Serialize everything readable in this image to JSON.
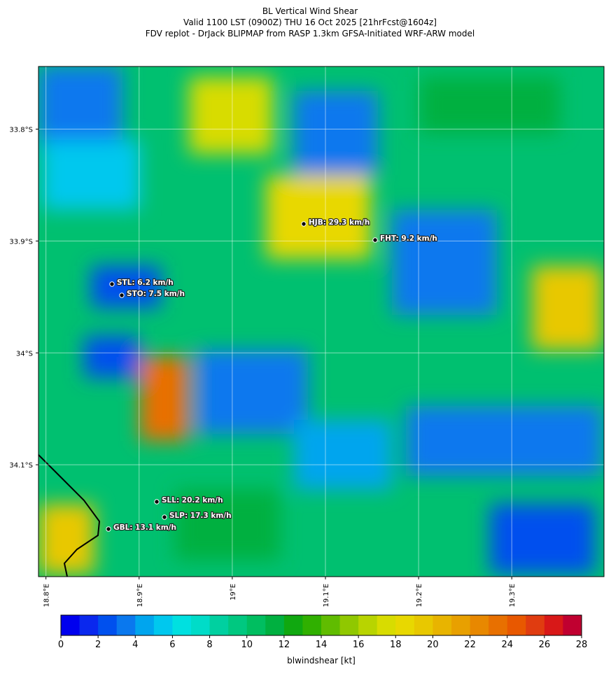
{
  "title": [
    "BL Vertical Wind Shear",
    "Valid 1100 LST (0900Z) THU 16 Oct 2025 [21hrFcst@1604z]",
    "FDV replot - DrJack BLIPMAP from RASP 1.3km GFSA-Initiated WRF-ARW model"
  ],
  "map": {
    "lat_range": [
      -34.2,
      -33.744
    ],
    "lon_range": [
      18.792,
      19.399
    ],
    "lat_ticks": [
      {
        "value": -33.8,
        "label": "33.8°S"
      },
      {
        "value": -33.9,
        "label": "33.9°S"
      },
      {
        "value": -34.0,
        "label": "34°S"
      },
      {
        "value": -34.1,
        "label": "34.1°S"
      }
    ],
    "lon_ticks": [
      {
        "value": 18.8,
        "label": "18.8°E"
      },
      {
        "value": 18.9,
        "label": "18.9°E"
      },
      {
        "value": 19.0,
        "label": "19°E"
      },
      {
        "value": 19.1,
        "label": "19.1°E"
      },
      {
        "value": 19.2,
        "label": "19.2°E"
      },
      {
        "value": 19.3,
        "label": "19.3°E"
      }
    ],
    "stations": [
      "HJB: 29.3 km/h",
      "FHT: 9.2 km/h",
      "STL: 6.2 km/h",
      "STO: 7.5 km/h",
      "SLL: 20.2 km/h",
      "SLP: 17.3 km/h",
      "GBL: 13.1 km/h"
    ]
  },
  "colorbar": {
    "label": "blwindshear [kt]",
    "range": [
      0,
      28
    ],
    "ticks": [
      0,
      2,
      4,
      6,
      8,
      10,
      12,
      14,
      16,
      18,
      20,
      22,
      24,
      26,
      28
    ],
    "colors": [
      "#0000ee",
      "#0a28ee",
      "#0050ee",
      "#0a78ee",
      "#00a5ee",
      "#00c8ee",
      "#00e0e0",
      "#00dcc8",
      "#00d0a0",
      "#00c880",
      "#00be60",
      "#00b040",
      "#10a810",
      "#30b000",
      "#60bc00",
      "#90c800",
      "#b8d400",
      "#d8dc00",
      "#e8d800",
      "#e8c800",
      "#e8b400",
      "#e8a000",
      "#e88800",
      "#e87000",
      "#e85800",
      "#e03c10",
      "#d81818",
      "#c00030"
    ]
  }
}
